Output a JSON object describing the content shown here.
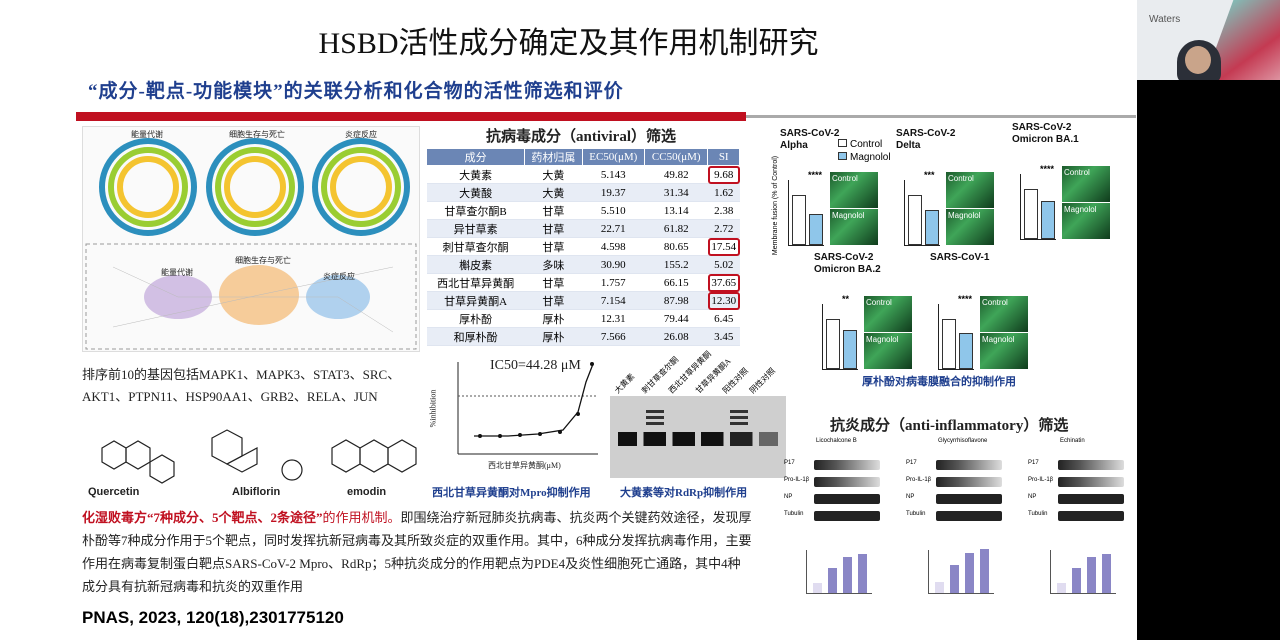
{
  "slide": {
    "title": "HSBD活性成分确定及其作用机制研究",
    "subtitle": "“成分-靶点-功能模块”的关联分析和化合物的活性筛选和评价",
    "network": {
      "circle_labels": [
        "能量代谢",
        "细胞生存与死亡",
        "炎症反应"
      ],
      "cluster_labels": [
        "能量代谢",
        "细胞生存与死亡",
        "炎症反应"
      ]
    },
    "genes_text_1": "排序前10的基因包括MAPK1、MAPK3、STAT3、SRC、",
    "genes_text_2": "AKT1、PTPN11、HSP90AA1、GRB2、RELA、JUN",
    "compounds": [
      "Quercetin",
      "Albiflorin",
      "emodin"
    ],
    "body_red": "化湿败毒方“7种成分、5个靶点、2条途径”",
    "body_red_tail": "的作用机制。",
    "body_rest": "即围绕治疗新冠肺炎抗病毒、抗炎两个关键药效途径，发现厚朴酚等7种成分作用于5个靶点，同时发挥抗新冠病毒及其所致炎症的双重作用。其中，6种成分发挥抗病毒作用，主要作用在病毒复制蛋白靶点SARS-CoV-2 Mpro、RdRp；5种抗炎成分的作用靶点为PDE4及炎性细胞死亡通路，其中4种成分具有抗新冠病毒和抗炎的双重作用",
    "citation": "PNAS, 2023, 120(18),2301775120",
    "antiviral_title": "抗病毒成分（antiviral）筛选",
    "table": {
      "headers": [
        "成分",
        "药材归属",
        "EC50(μM)",
        "CC50(μM)",
        "SI"
      ],
      "rows": [
        [
          "大黄素",
          "大黄",
          "5.143",
          "49.82",
          "9.68"
        ],
        [
          "大黄酸",
          "大黄",
          "19.37",
          "31.34",
          "1.62"
        ],
        [
          "甘草查尔酮B",
          "甘草",
          "5.510",
          "13.14",
          "2.38"
        ],
        [
          "异甘草素",
          "甘草",
          "22.71",
          "61.82",
          "2.72"
        ],
        [
          "刺甘草查尔酮",
          "甘草",
          "4.598",
          "80.65",
          "17.54"
        ],
        [
          "槲皮素",
          "多味",
          "30.90",
          "155.2",
          "5.02"
        ],
        [
          "西北甘草异黄酮",
          "甘草",
          "1.757",
          "66.15",
          "37.65"
        ],
        [
          "甘草异黄酮A",
          "甘草",
          "7.154",
          "87.98",
          "12.30"
        ],
        [
          "厚朴酚",
          "厚朴",
          "12.31",
          "79.44",
          "6.45"
        ],
        [
          "和厚朴酚",
          "厚朴",
          "7.566",
          "26.08",
          "3.45"
        ]
      ],
      "highlight_rows": [
        0,
        4,
        6,
        7
      ]
    },
    "ic50_label": "IC50=44.28 μM",
    "ic50_xlabel": "西北甘草异黄酮(μM)",
    "ic50_ylabel": "%inhibition",
    "ic50_caption": "西北甘草异黄酮对Mpro抑制作用",
    "gel_lanes": [
      "大黄素",
      "刺甘草查尔酮",
      "西北甘草异黄酮",
      "甘草异黄酮A",
      "阳性对照",
      "阴性对照"
    ],
    "gel_caption": "大黄素等对RdRp抑制作用",
    "fusion_panels": [
      {
        "name": "SARS-CoV-2 Alpha",
        "sig": "****"
      },
      {
        "name": "SARS-CoV-2 Delta",
        "sig": "***"
      },
      {
        "name": "SARS-CoV-2 Omicron BA.1",
        "sig": "****"
      },
      {
        "name": "SARS-CoV-2 Omicron BA.2",
        "sig": "**"
      },
      {
        "name": "SARS-CoV-1",
        "sig": "****"
      }
    ],
    "fusion_legend": [
      "Control",
      "Magnolol"
    ],
    "fusion_ylabel": "Membrane fusion (% of Control)",
    "micro_labels": [
      "Control",
      "Magnolol"
    ],
    "fusion_caption": "厚朴酚对病毒膜融合的抑制作用",
    "antiinflam_title": "抗炎成分（anti-inflammatory）筛选",
    "blot_compounds": [
      "Licochalcone B",
      "Glycyrrhisoflavone",
      "Echinatin"
    ],
    "blot_rows": [
      "P17",
      "Pro-IL-1β",
      "NP",
      "Tubulin"
    ],
    "colors": {
      "accent_red": "#c01020",
      "title_blue": "#1f3f8e",
      "table_header": "#6b86b5"
    }
  },
  "video": {
    "brand": "Waters"
  }
}
